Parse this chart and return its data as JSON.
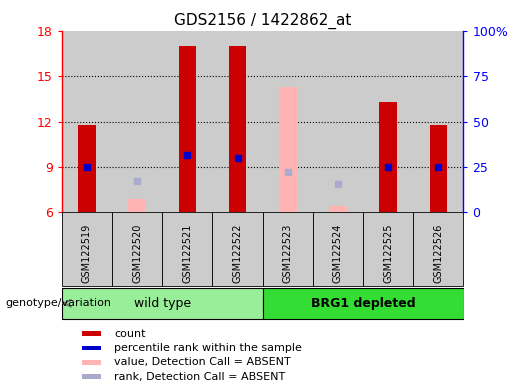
{
  "title": "GDS2156 / 1422862_at",
  "samples": [
    "GSM122519",
    "GSM122520",
    "GSM122521",
    "GSM122522",
    "GSM122523",
    "GSM122524",
    "GSM122525",
    "GSM122526"
  ],
  "count_values": [
    11.8,
    null,
    17.0,
    17.0,
    null,
    null,
    13.3,
    11.8
  ],
  "percentile_values": [
    9.0,
    null,
    9.8,
    9.6,
    null,
    null,
    9.0,
    9.0
  ],
  "absent_value_values": [
    null,
    6.9,
    null,
    null,
    14.3,
    6.4,
    null,
    null
  ],
  "absent_rank_values": [
    null,
    8.1,
    null,
    null,
    8.7,
    7.9,
    null,
    null
  ],
  "ylim_left": [
    6,
    18
  ],
  "ylim_right": [
    0,
    100
  ],
  "yticks_left": [
    6,
    9,
    12,
    15,
    18
  ],
  "yticks_right": [
    0,
    25,
    50,
    75,
    100
  ],
  "ytick_labels_right": [
    "0",
    "25",
    "50",
    "75",
    "100%"
  ],
  "group1_label": "wild type",
  "group2_label": "BRG1 depleted",
  "group1_indices": [
    0,
    1,
    2,
    3
  ],
  "group2_indices": [
    4,
    5,
    6,
    7
  ],
  "colors": {
    "count": "#cc0000",
    "percentile": "#0000cc",
    "absent_value": "#ffb3b3",
    "absent_rank": "#aaaacc",
    "group1_bg": "#99ee99",
    "group2_bg": "#33dd33",
    "sample_bg": "#cccccc",
    "plot_bg": "#ffffff",
    "border": "#000000"
  },
  "legend_labels": [
    "count",
    "percentile rank within the sample",
    "value, Detection Call = ABSENT",
    "rank, Detection Call = ABSENT"
  ],
  "legend_colors": [
    "#cc0000",
    "#0000cc",
    "#ffb3b3",
    "#aaaacc"
  ],
  "xlabel": "genotype/variation",
  "bar_width": 0.35,
  "title_fontsize": 11,
  "axis_fontsize": 9,
  "sample_fontsize": 7,
  "legend_fontsize": 8
}
